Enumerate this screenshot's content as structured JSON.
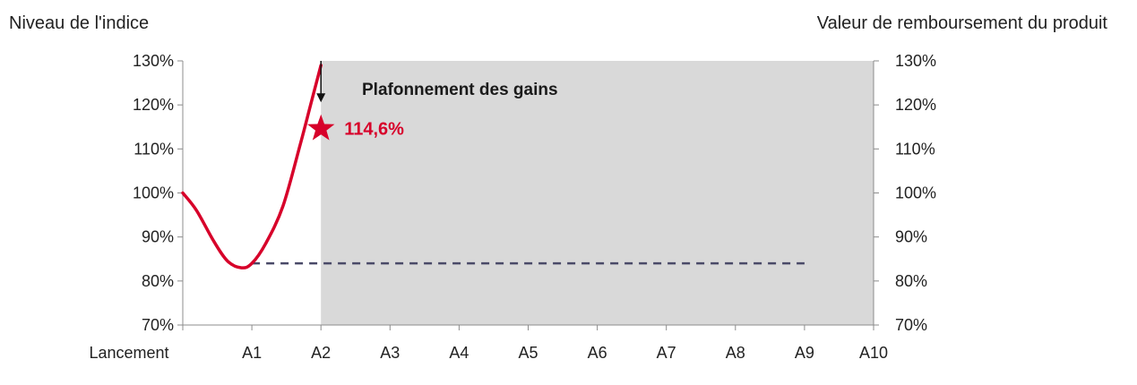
{
  "chart_data": {
    "type": "line",
    "left_axis_title": "Niveau de l'indice",
    "right_axis_title": "Valeur de remboursement du produit",
    "categories": [
      "Lancement",
      "A1",
      "A2",
      "A3",
      "A4",
      "A5",
      "A6",
      "A7",
      "A8",
      "A9",
      "A10"
    ],
    "yticks": [
      "70%",
      "80%",
      "90%",
      "100%",
      "110%",
      "120%",
      "130%"
    ],
    "ylim": [
      70,
      130
    ],
    "series": [
      {
        "values_x": [
          0,
          0.2,
          0.45,
          0.65,
          0.85,
          1.0,
          1.2,
          1.45,
          1.7,
          1.85,
          2.0
        ],
        "values_y": [
          100,
          96,
          89,
          84.5,
          83,
          84,
          88.5,
          97,
          111,
          120,
          129
        ],
        "color": "#d7002a"
      }
    ],
    "barrier": {
      "level": 84,
      "from": 1,
      "to": 9,
      "color": "#4a4a68"
    },
    "shaded_region": {
      "from": 2,
      "to": 10,
      "color": "#d9d9d9"
    },
    "annotations": {
      "cap_label": "Plafonnement des gains",
      "final_value_label": "114,6%",
      "final_value": 114.6,
      "final_value_at": 2,
      "final_color": "#d7002a"
    }
  }
}
